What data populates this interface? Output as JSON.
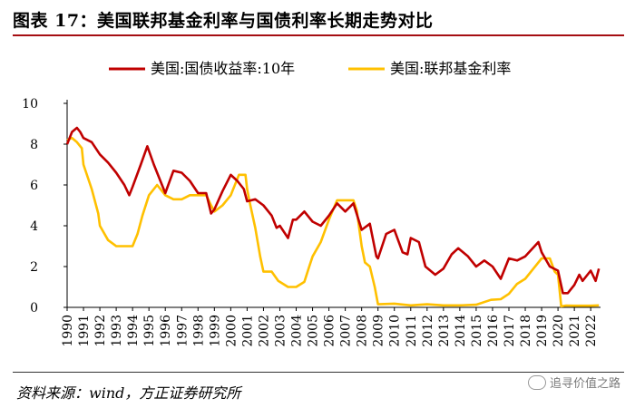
{
  "title": "图表 17：美国联邦基金利率与国债利率长期走势对比",
  "footer": {
    "source": "资料来源：wind，方正证券研究所",
    "watermark": "追寻价值之路"
  },
  "colors": {
    "treasury": "#c00000",
    "fed_funds": "#ffc000",
    "rule": "#a50d12"
  },
  "chart_data": {
    "type": "line",
    "title": "",
    "xlabel": "",
    "ylabel": "",
    "ylim": [
      0,
      10
    ],
    "yticks": [
      0,
      2,
      4,
      6,
      8,
      10
    ],
    "xlim": [
      1990,
      2022.6
    ],
    "xticks": [
      1990,
      1991,
      1992,
      1993,
      1994,
      1995,
      1996,
      1997,
      1998,
      1999,
      2000,
      2001,
      2002,
      2003,
      2004,
      2005,
      2006,
      2007,
      2008,
      2009,
      2010,
      2011,
      2012,
      2013,
      2014,
      2015,
      2016,
      2017,
      2018,
      2019,
      2020,
      2021,
      2022
    ],
    "legend_position": "top",
    "grid": false,
    "series": [
      {
        "name": "美国:国债收益率:10年",
        "color": "#c00000",
        "x": [
          1990.0,
          1990.3,
          1990.6,
          1990.8,
          1991.0,
          1991.5,
          1992.0,
          1992.5,
          1993.0,
          1993.5,
          1993.8,
          1994.0,
          1994.5,
          1994.9,
          1995.3,
          1995.7,
          1996.0,
          1996.5,
          1997.0,
          1997.5,
          1998.0,
          1998.5,
          1998.8,
          1999.0,
          1999.5,
          2000.0,
          2000.4,
          2000.8,
          2001.0,
          2001.5,
          2002.0,
          2002.5,
          2002.8,
          2003.0,
          2003.5,
          2003.8,
          2004.0,
          2004.5,
          2005.0,
          2005.5,
          2006.0,
          2006.5,
          2007.0,
          2007.5,
          2008.0,
          2008.5,
          2008.9,
          2009.0,
          2009.5,
          2010.0,
          2010.5,
          2010.8,
          2011.0,
          2011.5,
          2011.9,
          2012.5,
          2013.0,
          2013.5,
          2013.9,
          2014.5,
          2015.0,
          2015.5,
          2016.0,
          2016.5,
          2017.0,
          2017.5,
          2018.0,
          2018.8,
          2019.0,
          2019.5,
          2020.0,
          2020.3,
          2020.6,
          2021.0,
          2021.3,
          2021.5,
          2022.0,
          2022.3,
          2022.5
        ],
        "y": [
          8.0,
          8.6,
          8.8,
          8.6,
          8.3,
          8.1,
          7.5,
          7.1,
          6.6,
          6.0,
          5.5,
          5.9,
          7.0,
          7.9,
          7.0,
          6.2,
          5.6,
          6.7,
          6.6,
          6.2,
          5.6,
          5.6,
          4.6,
          4.8,
          5.7,
          6.5,
          6.2,
          5.8,
          5.2,
          5.3,
          5.0,
          4.5,
          3.9,
          4.0,
          3.4,
          4.3,
          4.3,
          4.7,
          4.2,
          4.0,
          4.5,
          5.1,
          4.7,
          5.1,
          3.8,
          4.1,
          2.5,
          2.4,
          3.6,
          3.8,
          2.7,
          2.6,
          3.4,
          3.2,
          2.0,
          1.6,
          1.9,
          2.6,
          2.9,
          2.5,
          2.0,
          2.3,
          2.0,
          1.4,
          2.4,
          2.3,
          2.5,
          3.2,
          2.7,
          2.0,
          1.8,
          0.7,
          0.7,
          1.1,
          1.6,
          1.3,
          1.8,
          1.3,
          1.9
        ]
      },
      {
        "name": "美国:联邦基金利率",
        "color": "#ffc000",
        "x": [
          1990.0,
          1990.3,
          1990.6,
          1990.9,
          1991.0,
          1991.5,
          1991.9,
          1992.0,
          1992.5,
          1993.0,
          1993.5,
          1994.0,
          1994.3,
          1994.6,
          1995.0,
          1995.5,
          1996.0,
          1996.5,
          1997.0,
          1997.5,
          1998.0,
          1998.5,
          1998.8,
          1999.0,
          1999.5,
          2000.0,
          2000.5,
          2000.9,
          2001.0,
          2001.2,
          2001.5,
          2001.8,
          2002.0,
          2002.5,
          2002.9,
          2003.0,
          2003.5,
          2004.0,
          2004.5,
          2004.8,
          2005.0,
          2005.5,
          2006.0,
          2006.5,
          2007.0,
          2007.5,
          2007.7,
          2008.0,
          2008.2,
          2008.5,
          2008.8,
          2009.0,
          2010.0,
          2011.0,
          2012.0,
          2013.0,
          2014.0,
          2015.0,
          2015.9,
          2016.5,
          2017.0,
          2017.5,
          2018.0,
          2018.5,
          2019.0,
          2019.5,
          2019.8,
          2020.0,
          2020.2,
          2020.5,
          2021.0,
          2022.0,
          2022.5
        ],
        "y": [
          8.2,
          8.3,
          8.1,
          7.8,
          7.0,
          5.8,
          4.6,
          4.0,
          3.3,
          3.0,
          3.0,
          3.0,
          3.6,
          4.5,
          5.5,
          6.0,
          5.5,
          5.3,
          5.3,
          5.5,
          5.5,
          5.5,
          5.0,
          4.7,
          5.0,
          5.5,
          6.5,
          6.5,
          5.8,
          5.0,
          3.9,
          2.5,
          1.75,
          1.75,
          1.3,
          1.25,
          1.0,
          1.0,
          1.25,
          2.0,
          2.5,
          3.2,
          4.3,
          5.25,
          5.25,
          5.25,
          4.75,
          3.0,
          2.2,
          2.0,
          1.0,
          0.15,
          0.18,
          0.1,
          0.15,
          0.1,
          0.1,
          0.13,
          0.37,
          0.4,
          0.66,
          1.15,
          1.4,
          1.9,
          2.4,
          2.4,
          1.75,
          1.6,
          0.05,
          0.09,
          0.08,
          0.08,
          0.1
        ]
      }
    ]
  }
}
